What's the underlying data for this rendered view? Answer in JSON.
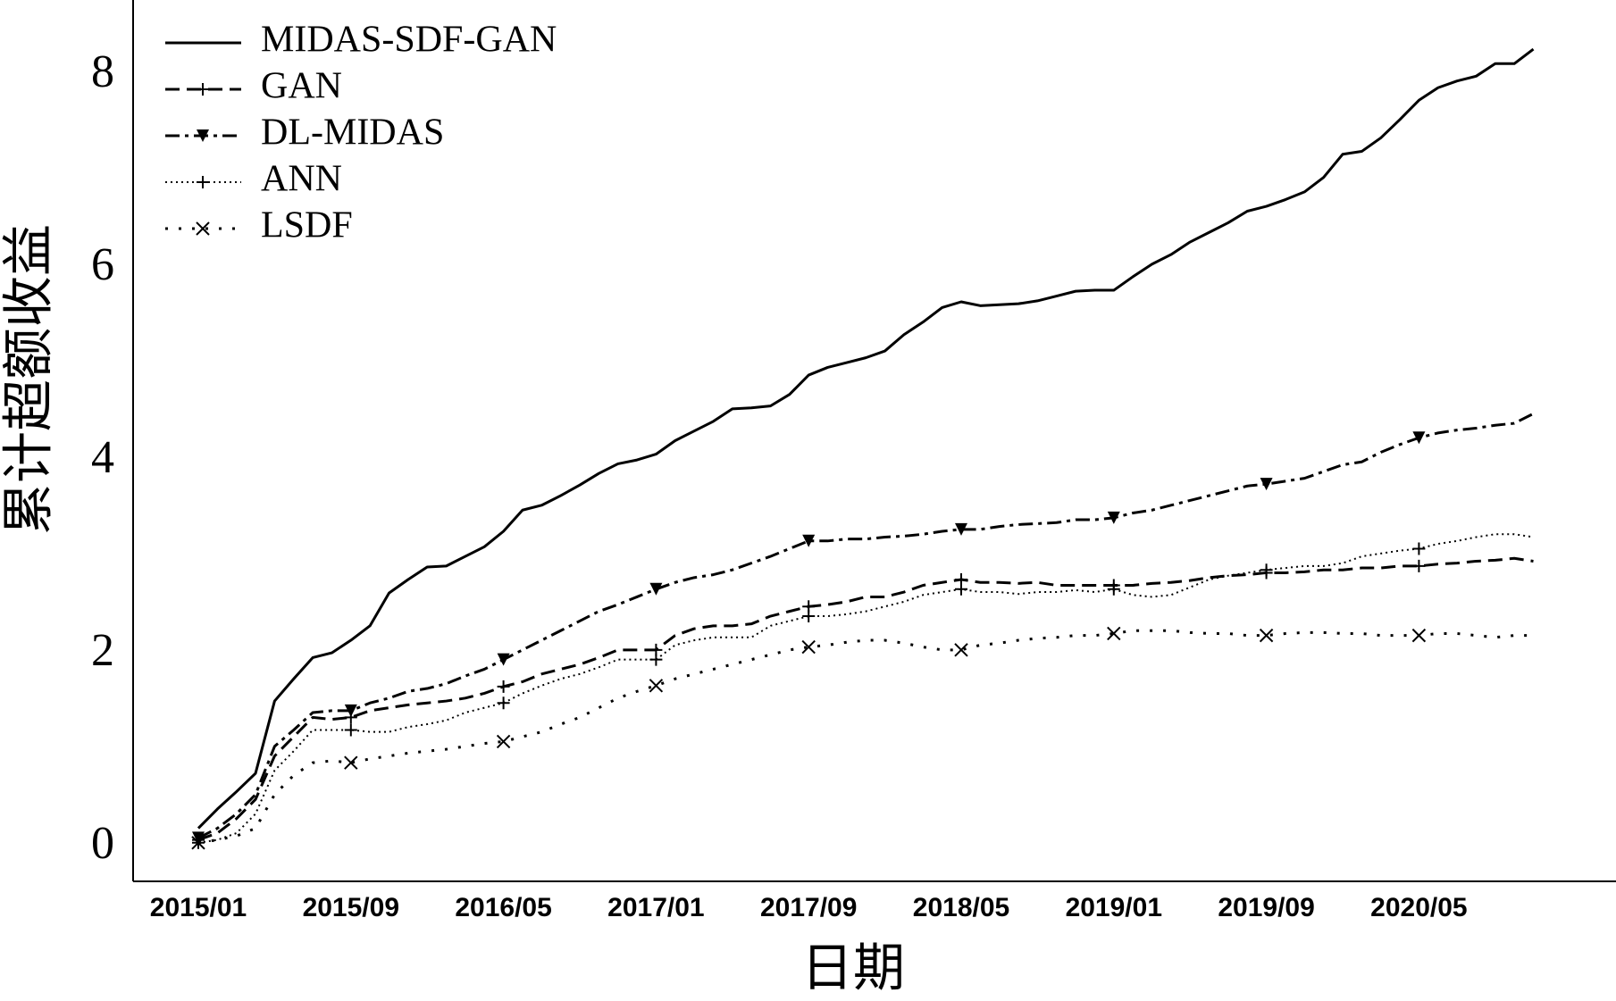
{
  "chart_data": {
    "type": "line",
    "x_label": "日期",
    "y_label": "累计超额收益",
    "categories": [
      "2015/01",
      null,
      null,
      null,
      null,
      null,
      null,
      null,
      "2015/09",
      null,
      null,
      null,
      null,
      null,
      null,
      null,
      "2016/05",
      null,
      null,
      null,
      null,
      null,
      null,
      null,
      "2017/01",
      null,
      null,
      null,
      null,
      null,
      null,
      null,
      "2017/09",
      null,
      null,
      null,
      null,
      null,
      null,
      null,
      "2018/05",
      null,
      null,
      null,
      null,
      null,
      null,
      null,
      "2019/01",
      null,
      null,
      null,
      null,
      null,
      null,
      null,
      "2019/09",
      null,
      null,
      null,
      null,
      null,
      null,
      null,
      "2020/05",
      null,
      null,
      null,
      null,
      null,
      null
    ],
    "ylim": [
      -0.35,
      8.79
    ],
    "yticks": [
      0,
      2,
      4,
      6,
      8
    ],
    "grid": false,
    "legend": "upper left",
    "series": [
      {
        "name": "MIDAS-SDF-GAN",
        "color": "#000000",
        "dash": "solid",
        "marker": "none",
        "values": [
          0.2,
          0.4,
          0.58,
          0.77,
          1.52,
          1.75,
          1.97,
          2.02,
          2.15,
          2.3,
          2.64,
          2.78,
          2.91,
          2.92,
          3.02,
          3.12,
          3.28,
          3.5,
          3.55,
          3.65,
          3.76,
          3.88,
          3.98,
          4.02,
          4.08,
          4.22,
          4.32,
          4.42,
          4.55,
          4.56,
          4.58,
          4.7,
          4.9,
          4.98,
          5.03,
          5.08,
          5.15,
          5.32,
          5.45,
          5.6,
          5.66,
          5.62,
          5.63,
          5.64,
          5.67,
          5.72,
          5.77,
          5.78,
          5.78,
          5.92,
          6.05,
          6.15,
          6.28,
          6.38,
          6.48,
          6.6,
          6.65,
          6.72,
          6.8,
          6.95,
          7.19,
          7.22,
          7.36,
          7.55,
          7.75,
          7.88,
          7.95,
          8.0,
          8.13,
          8.13,
          8.28
        ]
      },
      {
        "name": "GAN",
        "color": "#000000",
        "dash": "dashed",
        "marker": "plus",
        "values": [
          0.08,
          0.15,
          0.3,
          0.5,
          0.95,
          1.15,
          1.35,
          1.33,
          1.35,
          1.42,
          1.45,
          1.48,
          1.5,
          1.52,
          1.55,
          1.6,
          1.67,
          1.72,
          1.8,
          1.85,
          1.9,
          1.97,
          2.05,
          2.05,
          2.05,
          2.2,
          2.27,
          2.3,
          2.3,
          2.32,
          2.4,
          2.45,
          2.5,
          2.52,
          2.55,
          2.6,
          2.6,
          2.65,
          2.72,
          2.75,
          2.78,
          2.75,
          2.75,
          2.74,
          2.75,
          2.72,
          2.72,
          2.72,
          2.72,
          2.72,
          2.74,
          2.75,
          2.77,
          2.8,
          2.82,
          2.83,
          2.85,
          2.85,
          2.86,
          2.88,
          2.88,
          2.9,
          2.9,
          2.92,
          2.92,
          2.94,
          2.95,
          2.97,
          2.98,
          3.0,
          2.97
        ]
      },
      {
        "name": "DL-MIDAS",
        "color": "#000000",
        "dash": "dashdot",
        "marker": "triangle",
        "values": [
          0.1,
          0.2,
          0.35,
          0.55,
          1.05,
          1.22,
          1.4,
          1.42,
          1.42,
          1.5,
          1.55,
          1.62,
          1.65,
          1.7,
          1.78,
          1.85,
          1.95,
          2.05,
          2.15,
          2.25,
          2.35,
          2.45,
          2.52,
          2.6,
          2.68,
          2.75,
          2.8,
          2.83,
          2.88,
          2.95,
          3.02,
          3.1,
          3.18,
          3.18,
          3.2,
          3.2,
          3.22,
          3.23,
          3.25,
          3.28,
          3.3,
          3.3,
          3.33,
          3.35,
          3.36,
          3.37,
          3.4,
          3.4,
          3.42,
          3.47,
          3.5,
          3.55,
          3.6,
          3.65,
          3.7,
          3.75,
          3.77,
          3.8,
          3.83,
          3.9,
          3.97,
          4.0,
          4.1,
          4.18,
          4.25,
          4.3,
          4.33,
          4.35,
          4.38,
          4.4,
          4.5
        ]
      },
      {
        "name": "ANN",
        "color": "#000000",
        "dash": "finedot",
        "marker": "plus",
        "values": [
          0.05,
          0.08,
          0.15,
          0.35,
          0.8,
          1.0,
          1.22,
          1.22,
          1.22,
          1.2,
          1.2,
          1.25,
          1.28,
          1.32,
          1.4,
          1.45,
          1.5,
          1.6,
          1.68,
          1.75,
          1.8,
          1.87,
          1.95,
          1.95,
          1.95,
          2.1,
          2.15,
          2.18,
          2.18,
          2.18,
          2.3,
          2.35,
          2.4,
          2.4,
          2.42,
          2.45,
          2.5,
          2.55,
          2.62,
          2.65,
          2.68,
          2.65,
          2.65,
          2.63,
          2.65,
          2.65,
          2.67,
          2.65,
          2.68,
          2.62,
          2.6,
          2.62,
          2.7,
          2.78,
          2.82,
          2.85,
          2.88,
          2.9,
          2.92,
          2.92,
          2.95,
          3.02,
          3.05,
          3.08,
          3.1,
          3.15,
          3.18,
          3.22,
          3.25,
          3.25,
          3.22
        ]
      },
      {
        "name": "LSDF",
        "color": "#000000",
        "dash": "dotted",
        "marker": "x",
        "values": [
          0.05,
          0.08,
          0.12,
          0.2,
          0.55,
          0.75,
          0.88,
          0.9,
          0.88,
          0.92,
          0.95,
          0.98,
          1.0,
          1.02,
          1.05,
          1.08,
          1.1,
          1.15,
          1.2,
          1.28,
          1.35,
          1.45,
          1.55,
          1.62,
          1.68,
          1.75,
          1.8,
          1.85,
          1.9,
          1.95,
          2.0,
          2.05,
          2.08,
          2.1,
          2.13,
          2.15,
          2.15,
          2.12,
          2.08,
          2.05,
          2.05,
          2.1,
          2.12,
          2.15,
          2.17,
          2.18,
          2.2,
          2.2,
          2.22,
          2.25,
          2.25,
          2.25,
          2.23,
          2.22,
          2.22,
          2.2,
          2.2,
          2.22,
          2.23,
          2.23,
          2.22,
          2.22,
          2.2,
          2.2,
          2.2,
          2.22,
          2.22,
          2.2,
          2.18,
          2.2,
          2.2
        ]
      }
    ]
  }
}
